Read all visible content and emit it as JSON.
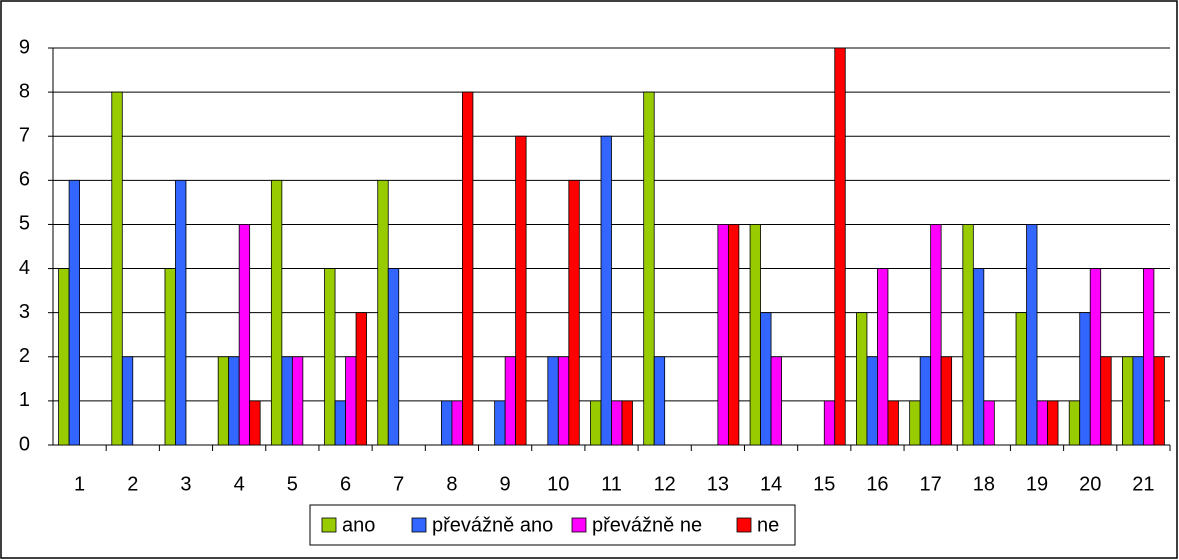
{
  "chart_data": {
    "type": "bar",
    "categories": [
      "1",
      "2",
      "3",
      "4",
      "5",
      "6",
      "7",
      "8",
      "9",
      "10",
      "11",
      "12",
      "13",
      "14",
      "15",
      "16",
      "17",
      "18",
      "19",
      "20",
      "21"
    ],
    "series": [
      {
        "name": "ano",
        "color": "#99cc00",
        "values": [
          4,
          8,
          4,
          2,
          6,
          4,
          6,
          0,
          0,
          0,
          1,
          8,
          0,
          5,
          0,
          3,
          1,
          5,
          3,
          1,
          2
        ]
      },
      {
        "name": "převážně ano",
        "color": "#3366ff",
        "values": [
          6,
          2,
          6,
          2,
          2,
          1,
          4,
          1,
          1,
          2,
          7,
          2,
          0,
          3,
          0,
          2,
          2,
          4,
          5,
          3,
          2
        ]
      },
      {
        "name": "převážně ne",
        "color": "#ff00ff",
        "values": [
          0,
          0,
          0,
          5,
          2,
          2,
          0,
          1,
          2,
          2,
          1,
          0,
          5,
          2,
          1,
          4,
          5,
          1,
          1,
          4,
          4
        ]
      },
      {
        "name": "ne",
        "color": "#ff0000",
        "values": [
          0,
          0,
          0,
          1,
          0,
          3,
          0,
          8,
          7,
          6,
          1,
          0,
          5,
          0,
          9,
          1,
          2,
          0,
          1,
          2,
          2
        ]
      }
    ],
    "ylim": [
      0,
      9
    ],
    "yticks": [
      0,
      1,
      2,
      3,
      4,
      5,
      6,
      7,
      8,
      9
    ],
    "grid": true,
    "legend": "bottom"
  }
}
